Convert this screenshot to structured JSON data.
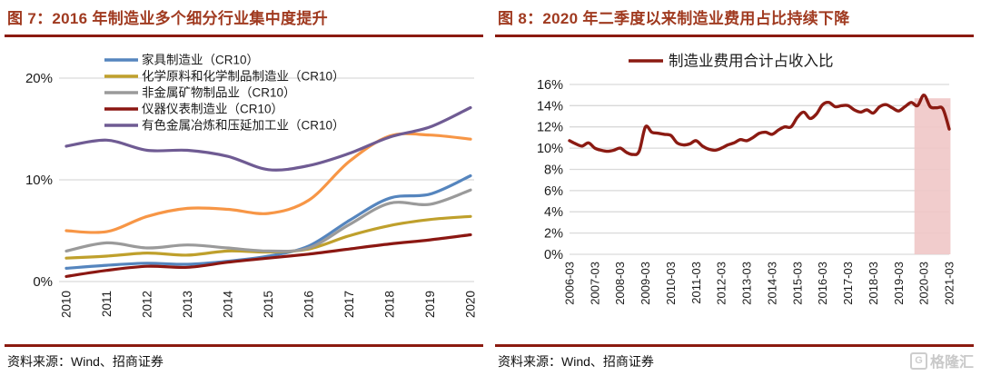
{
  "page": {
    "background": "#FFFFFF",
    "title_color": "#A03A20",
    "divider_color": "#8B1A10",
    "gridline_color": "#D9D9D9",
    "watermark_color": "#C9C9C9"
  },
  "panels": [
    {
      "title": "图 7：2016 年制造业多个细分行业集中度提升",
      "source": "资料来源：Wind、招商证券"
    },
    {
      "title": "图 8：2020 年二季度以来制造业费用占比持续下降",
      "source": "资料来源：Wind、招商证券",
      "watermark": {
        "logo_icon": "gelonghui-logo",
        "logo_glyph": "G",
        "text": "格隆汇"
      }
    }
  ],
  "chart_data": [
    {
      "type": "line",
      "title": "",
      "categories": [
        "2010",
        "2011",
        "2012",
        "2013",
        "2014",
        "2015",
        "2016",
        "2017",
        "2018",
        "2019",
        "2020"
      ],
      "ylim": [
        0,
        20
      ],
      "yticks": [
        {
          "value": 0,
          "label": "0%"
        },
        {
          "value": 10,
          "label": "10%"
        },
        {
          "value": 20,
          "label": "20%"
        }
      ],
      "grid": "horizontal",
      "legend_position": "top-left",
      "series": [
        {
          "name": "家具制造业（CR10）",
          "color": "#5585BE",
          "legend": true,
          "values": [
            1.3,
            1.6,
            1.8,
            1.7,
            2.0,
            2.5,
            3.5,
            6.0,
            8.2,
            8.6,
            10.4
          ]
        },
        {
          "name": "化学原料和化学制品制造业（CR10）",
          "color": "#BFA02C",
          "legend": true,
          "values": [
            2.3,
            2.5,
            2.8,
            2.6,
            3.0,
            2.9,
            3.2,
            4.5,
            5.5,
            6.1,
            6.4
          ]
        },
        {
          "name": "非金属矿物制品业（CR10）",
          "color": "#9A9A9A",
          "legend": true,
          "values": [
            3.0,
            3.8,
            3.3,
            3.6,
            3.3,
            3.0,
            3.3,
            5.6,
            7.7,
            7.6,
            9.0
          ]
        },
        {
          "name": "仪器仪表制造业（CR10）",
          "color": "#8B1712",
          "legend": true,
          "values": [
            0.5,
            1.1,
            1.5,
            1.4,
            1.9,
            2.3,
            2.7,
            3.2,
            3.7,
            4.1,
            4.6
          ]
        },
        {
          "name": null,
          "color": "#F79646",
          "legend": false,
          "values": [
            5.0,
            4.9,
            6.4,
            7.2,
            7.1,
            6.7,
            8.0,
            11.8,
            14.3,
            14.4,
            14.0
          ]
        },
        {
          "name": "有色金属冶炼和压延加工业（CR10）",
          "color": "#6F5B93",
          "legend": true,
          "values": [
            13.3,
            13.9,
            12.9,
            12.9,
            12.3,
            11.0,
            11.4,
            12.6,
            14.2,
            15.2,
            17.1
          ]
        }
      ]
    },
    {
      "type": "line",
      "title": "",
      "x_frequency": "quarterly",
      "x_tick_labels": [
        "2006-03",
        "2007-03",
        "2008-03",
        "2009-03",
        "2010-03",
        "2011-03",
        "2012-03",
        "2013-03",
        "2014-03",
        "2015-03",
        "2016-03",
        "2017-03",
        "2018-03",
        "2019-03",
        "2020-03",
        "2021-03"
      ],
      "ylim": [
        0,
        16
      ],
      "yticks": [
        {
          "value": 0,
          "label": "0%"
        },
        {
          "value": 2,
          "label": "2%"
        },
        {
          "value": 4,
          "label": "4%"
        },
        {
          "value": 6,
          "label": "6%"
        },
        {
          "value": 8,
          "label": "8%"
        },
        {
          "value": 10,
          "label": "10%"
        },
        {
          "value": 12,
          "label": "12%"
        },
        {
          "value": 14,
          "label": "14%"
        },
        {
          "value": 16,
          "label": "16%"
        }
      ],
      "grid": "horizontal",
      "legend_position": "top-center",
      "highlight_band": {
        "start_index": 54.5,
        "end_index": 60.2,
        "top_value": 14.7,
        "color": "#EFC7C7"
      },
      "series": [
        {
          "name": "制造业费用合计占收入比",
          "color": "#8B1A12",
          "legend": true,
          "values": [
            10.7,
            10.4,
            10.2,
            10.5,
            10.0,
            9.8,
            9.7,
            9.8,
            10.0,
            9.6,
            9.4,
            9.7,
            12.0,
            11.5,
            11.4,
            11.3,
            11.2,
            10.5,
            10.3,
            10.4,
            10.7,
            10.2,
            9.9,
            9.8,
            10.0,
            10.3,
            10.5,
            10.8,
            10.7,
            11.0,
            11.4,
            11.5,
            11.3,
            11.7,
            12.0,
            12.0,
            12.9,
            13.4,
            12.8,
            13.2,
            14.1,
            14.3,
            13.9,
            14.0,
            14.0,
            13.6,
            13.4,
            13.6,
            13.3,
            13.9,
            14.1,
            13.8,
            13.5,
            13.9,
            14.3,
            14.0,
            15.0,
            13.9,
            13.8,
            13.7,
            11.8
          ]
        }
      ]
    }
  ]
}
